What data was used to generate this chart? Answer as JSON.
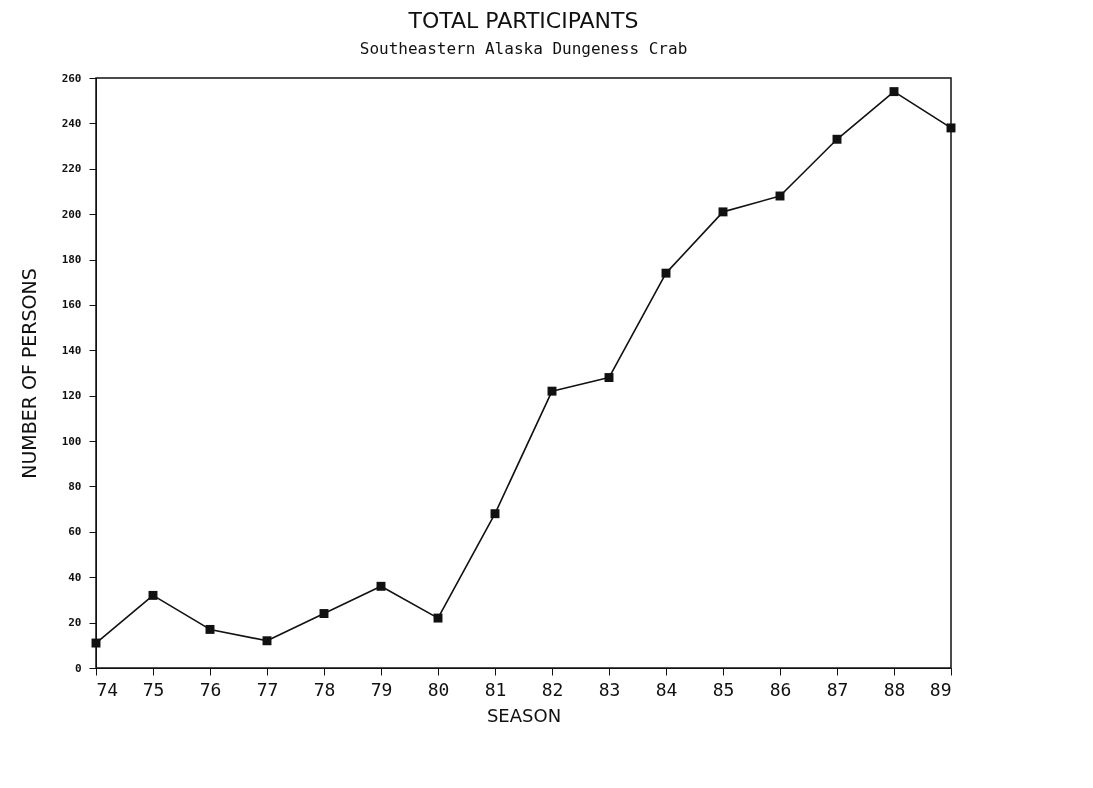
{
  "chart_data": {
    "type": "line",
    "title": "TOTAL PARTICIPANTS",
    "subtitle": "Southeastern Alaska Dungeness Crab",
    "xlabel": "SEASON",
    "ylabel": "NUMBER OF PERSONS",
    "x": [
      74,
      75,
      76,
      77,
      78,
      79,
      80,
      81,
      82,
      83,
      84,
      85,
      86,
      87,
      88,
      89
    ],
    "series": [
      {
        "color": "#111111",
        "values": [
          11,
          32,
          17,
          12,
          24,
          36,
          22,
          68,
          122,
          128,
          174,
          201,
          208,
          233,
          254,
          238
        ]
      }
    ],
    "xlim": [
      74,
      89
    ],
    "xticks": [
      74,
      75,
      76,
      77,
      78,
      79,
      80,
      81,
      82,
      83,
      84,
      85,
      86,
      87,
      88,
      89
    ],
    "ylim": [
      0,
      260
    ],
    "yticks": [
      0,
      20,
      40,
      60,
      80,
      100,
      120,
      140,
      160,
      180,
      200,
      220,
      240,
      260
    ],
    "marker": "square",
    "line_style": "solid",
    "grid": false,
    "legend": false
  }
}
